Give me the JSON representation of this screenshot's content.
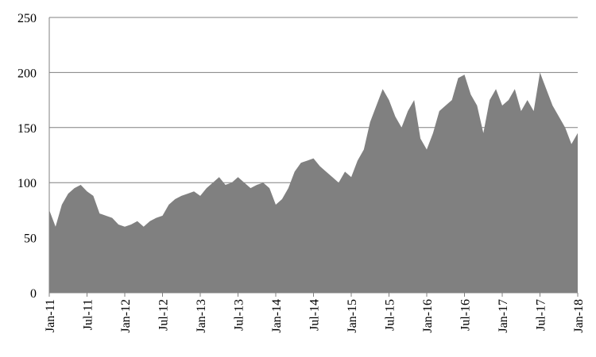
{
  "chart_data": {
    "type": "area",
    "color": "#808080",
    "grid": true,
    "categories": [
      "Jan-11",
      null,
      null,
      null,
      null,
      null,
      "Jul-11",
      null,
      null,
      null,
      null,
      null,
      "Jan-12",
      null,
      null,
      null,
      null,
      null,
      "Jul-12",
      null,
      null,
      null,
      null,
      null,
      "Jan-13",
      null,
      null,
      null,
      null,
      null,
      "Jul-13",
      null,
      null,
      null,
      null,
      null,
      "Jan-14",
      null,
      null,
      null,
      null,
      null,
      "Jul-14",
      null,
      null,
      null,
      null,
      null,
      "Jan-15",
      null,
      null,
      null,
      null,
      null,
      "Jul-15",
      null,
      null,
      null,
      null,
      null,
      "Jan-16",
      null,
      null,
      null,
      null,
      null,
      "Jul-16",
      null,
      null,
      null,
      null,
      null,
      "Jan-17",
      null,
      null,
      null,
      null,
      null,
      "Jul-17",
      null,
      null,
      null,
      null,
      null,
      "Jan-18"
    ],
    "values": [
      75,
      60,
      80,
      90,
      95,
      98,
      92,
      88,
      72,
      70,
      68,
      62,
      60,
      62,
      65,
      60,
      65,
      68,
      70,
      80,
      85,
      88,
      90,
      92,
      88,
      95,
      100,
      105,
      98,
      100,
      105,
      100,
      95,
      98,
      100,
      95,
      80,
      85,
      95,
      110,
      118,
      120,
      122,
      115,
      110,
      105,
      100,
      110,
      105,
      120,
      130,
      155,
      170,
      185,
      175,
      160,
      150,
      165,
      175,
      140,
      130,
      145,
      165,
      170,
      175,
      195,
      198,
      180,
      170,
      145,
      175,
      185,
      170,
      175,
      185,
      165,
      175,
      165,
      200,
      185,
      170,
      160,
      150,
      135,
      145
    ],
    "ylim": [
      0,
      250
    ],
    "yticks": [
      0,
      50,
      100,
      150,
      200,
      250
    ]
  }
}
